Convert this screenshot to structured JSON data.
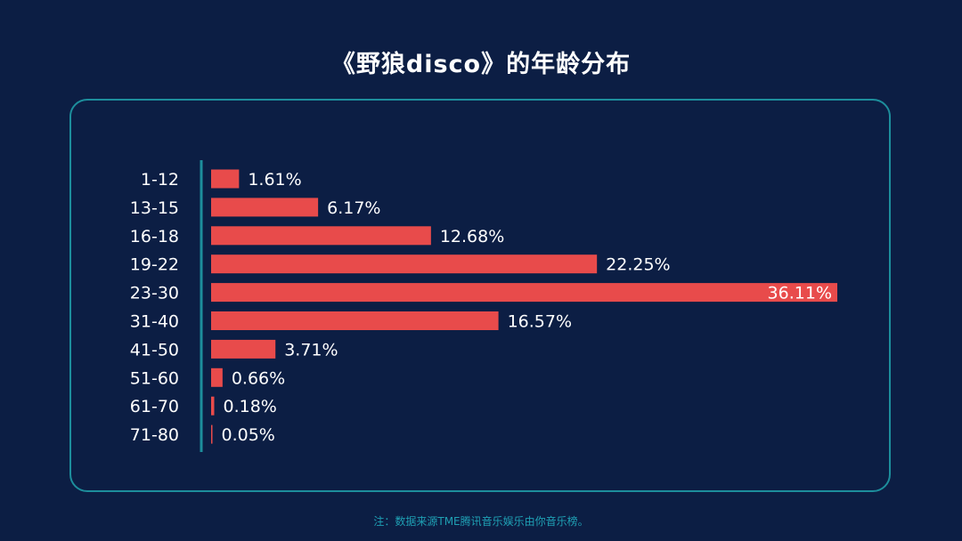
{
  "title": "《野狼disco》的年龄分布",
  "footnote": "注：数据来源TME腾讯音乐娱乐由你音乐榜。",
  "colors": {
    "background": "#0c1e44",
    "bar": "#e84b4b",
    "axis": "#1d8e9c",
    "text": "#ffffff",
    "footnote": "#1fa0b4"
  },
  "chart_data": {
    "type": "bar",
    "orientation": "horizontal",
    "title": "《野狼disco》的年龄分布",
    "categories": [
      "1-12",
      "13-15",
      "16-18",
      "19-22",
      "23-30",
      "31-40",
      "41-50",
      "51-60",
      "61-70",
      "71-80"
    ],
    "values": [
      1.61,
      6.17,
      12.68,
      22.25,
      36.11,
      16.57,
      3.71,
      0.66,
      0.18,
      0.05
    ],
    "labels": [
      "1.61%",
      "6.17%",
      "12.68%",
      "22.25%",
      "36.11%",
      "16.57%",
      "3.71%",
      "0.66%",
      "0.18%",
      "0.05%"
    ],
    "unit": "%",
    "xlim": [
      0,
      36.11
    ],
    "grid": false,
    "legend": "none"
  }
}
